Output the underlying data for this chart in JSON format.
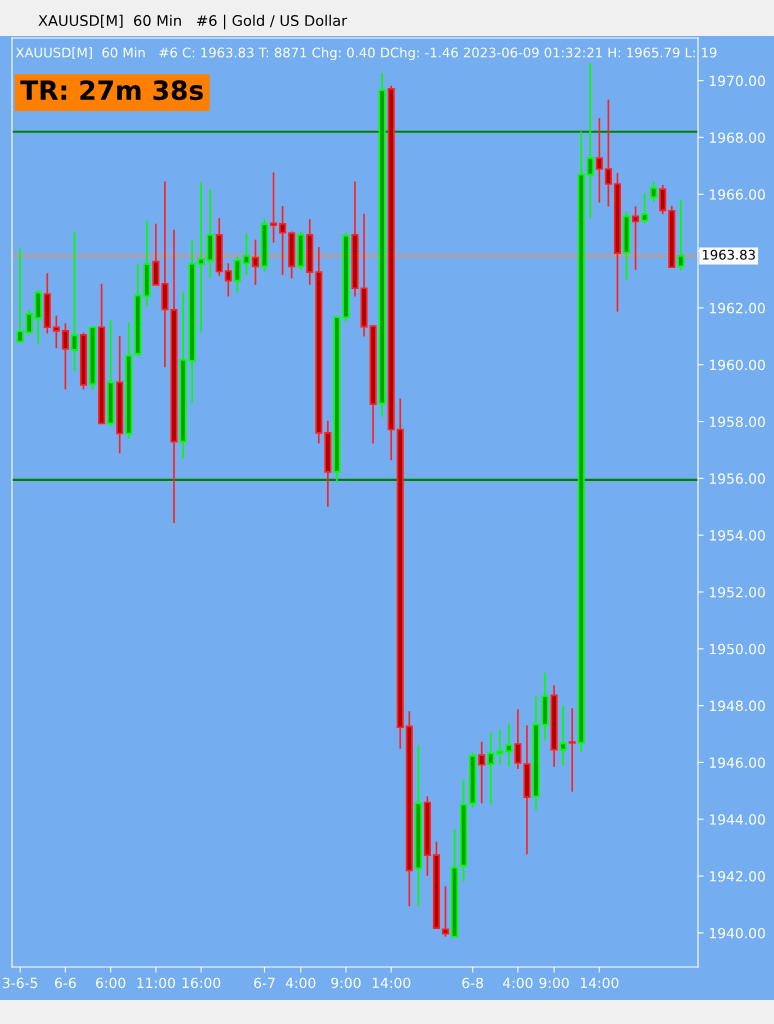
{
  "chart_data": {
    "type": "candlestick",
    "title": "XAUUSD[M]  60 Min   #6 | Gold / US Dollar",
    "annotations": [
      "XAUUSD[M]  60 Min   #6 C: 1963.83 T: 8871 Chg: 0.40 DChg: -1.46 2023-06-09 01:32:21 H: 1965.79 L: 19",
      "TR: 27m 38s"
    ],
    "categories": [
      "3-6-5",
      null,
      null,
      null,
      null,
      "6-6",
      null,
      null,
      null,
      null,
      "6:00",
      null,
      null,
      null,
      null,
      "11:00",
      null,
      null,
      null,
      null,
      "16:00",
      null,
      null,
      null,
      null,
      null,
      null,
      "6-7",
      null,
      null,
      null,
      "4:00",
      null,
      null,
      null,
      null,
      "9:00",
      null,
      null,
      null,
      null,
      "14:00",
      null,
      null,
      null,
      null,
      null,
      null,
      null,
      null,
      "6-8",
      null,
      null,
      null,
      null,
      "4:00",
      null,
      null,
      null,
      "9:00",
      null,
      null,
      null,
      null,
      "14:00",
      null,
      null,
      null,
      null,
      null,
      null,
      null,
      null,
      null
    ],
    "ohlc": [
      [
        1960.81,
        1964.1,
        1960.81,
        1961.17
      ],
      [
        1961.14,
        1961.93,
        1961.08,
        1961.79
      ],
      [
        1961.64,
        1962.63,
        1960.75,
        1962.54
      ],
      [
        1962.49,
        1963.22,
        1961.1,
        1961.32
      ],
      [
        1961.32,
        1961.73,
        1960.58,
        1961.19
      ],
      [
        1961.19,
        1961.46,
        1959.13,
        1960.56
      ],
      [
        1960.52,
        1964.69,
        1959.79,
        1961.03
      ],
      [
        1961.05,
        1961.13,
        1959.13,
        1959.29
      ],
      [
        1959.32,
        1961.32,
        1959.13,
        1961.32
      ],
      [
        1961.32,
        1962.85,
        1957.93,
        1957.93
      ],
      [
        1957.93,
        1961.58,
        1957.82,
        1959.38
      ],
      [
        1959.38,
        1961.01,
        1956.88,
        1957.58
      ],
      [
        1957.58,
        1961.48,
        1957.41,
        1960.32
      ],
      [
        1960.38,
        1963.55,
        1960.29,
        1962.43
      ],
      [
        1962.42,
        1965.07,
        1962.05,
        1963.54
      ],
      [
        1963.63,
        1964.96,
        1962.81,
        1962.81
      ],
      [
        1962.85,
        1966.45,
        1959.91,
        1961.95
      ],
      [
        1961.93,
        1964.75,
        1954.43,
        1957.29
      ],
      [
        1957.29,
        1962.58,
        1956.7,
        1960.17
      ],
      [
        1960.14,
        1964.4,
        1958.66,
        1963.55
      ],
      [
        1963.54,
        1966.42,
        1961.13,
        1963.72
      ],
      [
        1963.67,
        1966.18,
        1963.05,
        1964.57
      ],
      [
        1964.57,
        1965.16,
        1963.13,
        1963.28
      ],
      [
        1963.3,
        1963.57,
        1962.4,
        1962.96
      ],
      [
        1962.96,
        1963.8,
        1962.54,
        1963.67
      ],
      [
        1963.57,
        1964.63,
        1963.16,
        1963.83
      ],
      [
        1963.77,
        1964.4,
        1962.81,
        1963.46
      ],
      [
        1963.46,
        1965.16,
        1963.28,
        1964.95
      ],
      [
        1964.98,
        1966.77,
        1964.3,
        1964.91
      ],
      [
        1964.96,
        1965.59,
        1963.16,
        1964.65
      ],
      [
        1964.63,
        1964.69,
        1963.04,
        1963.46
      ],
      [
        1963.46,
        1964.69,
        1963.34,
        1964.57
      ],
      [
        1964.57,
        1965.12,
        1962.81,
        1963.26
      ],
      [
        1963.26,
        1964.14,
        1957.23,
        1957.6
      ],
      [
        1957.6,
        1958.03,
        1955.0,
        1956.23
      ],
      [
        1956.23,
        1961.69,
        1955.88,
        1961.67
      ],
      [
        1961.67,
        1964.65,
        1961.52,
        1964.54
      ],
      [
        1964.57,
        1966.45,
        1962.4,
        1962.69
      ],
      [
        1962.69,
        1965.31,
        1960.99,
        1961.34
      ],
      [
        1961.36,
        1961.4,
        1957.23,
        1958.61
      ],
      [
        1958.64,
        1970.27,
        1958.17,
        1969.66
      ],
      [
        1969.71,
        1969.82,
        1956.64,
        1957.72
      ],
      [
        1957.72,
        1958.81,
        1946.48,
        1947.24
      ],
      [
        1947.27,
        1947.8,
        1940.94,
        1942.2
      ],
      [
        1942.27,
        1946.61,
        1940.94,
        1944.56
      ],
      [
        1944.59,
        1944.81,
        1942.01,
        1942.74
      ],
      [
        1942.74,
        1943.21,
        1940.17,
        1940.17
      ],
      [
        1940.13,
        1941.64,
        1939.87,
        1939.97
      ],
      [
        1939.87,
        1943.65,
        1939.87,
        1942.3
      ],
      [
        1942.37,
        1945.39,
        1941.82,
        1944.51
      ],
      [
        1944.56,
        1946.36,
        1944.41,
        1946.23
      ],
      [
        1946.26,
        1946.73,
        1944.56,
        1945.92
      ],
      [
        1945.94,
        1947.05,
        1944.53,
        1946.32
      ],
      [
        1946.32,
        1947.17,
        1945.92,
        1946.39
      ],
      [
        1946.39,
        1947.36,
        1945.85,
        1946.61
      ],
      [
        1946.65,
        1947.87,
        1945.77,
        1945.98
      ],
      [
        1945.94,
        1947.3,
        1942.77,
        1944.78
      ],
      [
        1944.81,
        1948.33,
        1944.34,
        1947.33
      ],
      [
        1947.33,
        1949.16,
        1946.77,
        1948.33
      ],
      [
        1948.36,
        1948.72,
        1945.85,
        1946.45
      ],
      [
        1946.45,
        1948.0,
        1945.89,
        1946.67
      ],
      [
        1946.72,
        1947.91,
        1944.97,
        1946.69
      ],
      [
        1946.7,
        1968.21,
        1946.36,
        1966.69
      ],
      [
        1966.69,
        1970.62,
        1965.16,
        1967.27
      ],
      [
        1967.27,
        1968.68,
        1965.71,
        1966.89
      ],
      [
        1966.89,
        1969.33,
        1965.57,
        1966.36
      ],
      [
        1966.36,
        1966.75,
        1961.87,
        1963.93
      ],
      [
        1963.95,
        1965.39,
        1962.99,
        1965.22
      ],
      [
        1965.22,
        1965.57,
        1963.34,
        1965.04
      ],
      [
        1965.07,
        1966.04,
        1964.98,
        1965.3
      ],
      [
        1965.9,
        1966.45,
        1965.71,
        1966.22
      ],
      [
        1966.18,
        1966.33,
        1965.3,
        1965.43
      ],
      [
        1965.42,
        1965.59,
        1963.43,
        1963.43
      ],
      [
        1963.46,
        1965.81,
        1963.31,
        1963.83
      ]
    ],
    "colors": [
      "#00a000",
      "#00a000",
      "#00a000",
      "#b00000",
      "#b00000",
      "#b00000",
      "#00a000",
      "#b00000",
      "#00a000",
      "#b00000",
      "#00a000",
      "#b00000",
      "#00a000",
      "#00a000",
      "#00a000",
      "#b00000",
      "#b00000",
      "#b00000",
      "#00a000",
      "#00a000",
      "#00a000",
      "#00a000",
      "#b00000",
      "#b00000",
      "#00a000",
      "#00a000",
      "#b00000",
      "#00a000",
      "#b00000",
      "#b00000",
      "#b00000",
      "#00a000",
      "#b00000",
      "#b00000",
      "#b00000",
      "#00a000",
      "#00a000",
      "#b00000",
      "#b00000",
      "#b00000",
      "#00a000",
      "#b00000",
      "#b00000",
      "#b00000",
      "#00a000",
      "#b00000",
      "#b00000",
      "#b00000",
      "#00a000",
      "#00a000",
      "#00a000",
      "#b00000",
      "#00a000",
      "#00a000",
      "#00a000",
      "#b00000",
      "#b00000",
      "#00a000",
      "#00a000",
      "#b00000",
      "#00a000",
      "#b00000",
      "#00a000",
      "#00a000",
      "#b00000",
      "#b00000",
      "#b00000",
      "#00a000",
      "#b00000",
      "#00a000",
      "#00a000",
      "#b00000",
      "#b00000",
      "#00a000"
    ],
    "ylim": [
      1938.8,
      1971.5
    ],
    "yticks": [
      {
        "value": 1940,
        "label": "1940.00"
      },
      {
        "value": 1942,
        "label": "1942.00"
      },
      {
        "value": 1944,
        "label": "1944.00"
      },
      {
        "value": 1946,
        "label": "1946.00"
      },
      {
        "value": 1948,
        "label": "1948.00"
      },
      {
        "value": 1950,
        "label": "1950.00"
      },
      {
        "value": 1952,
        "label": "1952.00"
      },
      {
        "value": 1954,
        "label": "1954.00"
      },
      {
        "value": 1956,
        "label": "1956.00"
      },
      {
        "value": 1958,
        "label": "1958.00"
      },
      {
        "value": 1960,
        "label": "1960.00"
      },
      {
        "value": 1962,
        "label": "1962.00"
      },
      {
        "value": 1964,
        "label": null
      },
      {
        "value": 1966,
        "label": "1966.00"
      },
      {
        "value": 1968,
        "label": "1968.00"
      },
      {
        "value": 1970,
        "label": "1970.00"
      }
    ],
    "ref_lines": [
      {
        "axis": "y",
        "value": 1968.2,
        "color": "#008000"
      },
      {
        "axis": "y",
        "value": 1955.95,
        "color": "#008000"
      },
      {
        "axis": "y",
        "value": 1963.83,
        "label": "1963.83",
        "color": "#ff8c40"
      }
    ],
    "grid": false,
    "legend": false
  }
}
